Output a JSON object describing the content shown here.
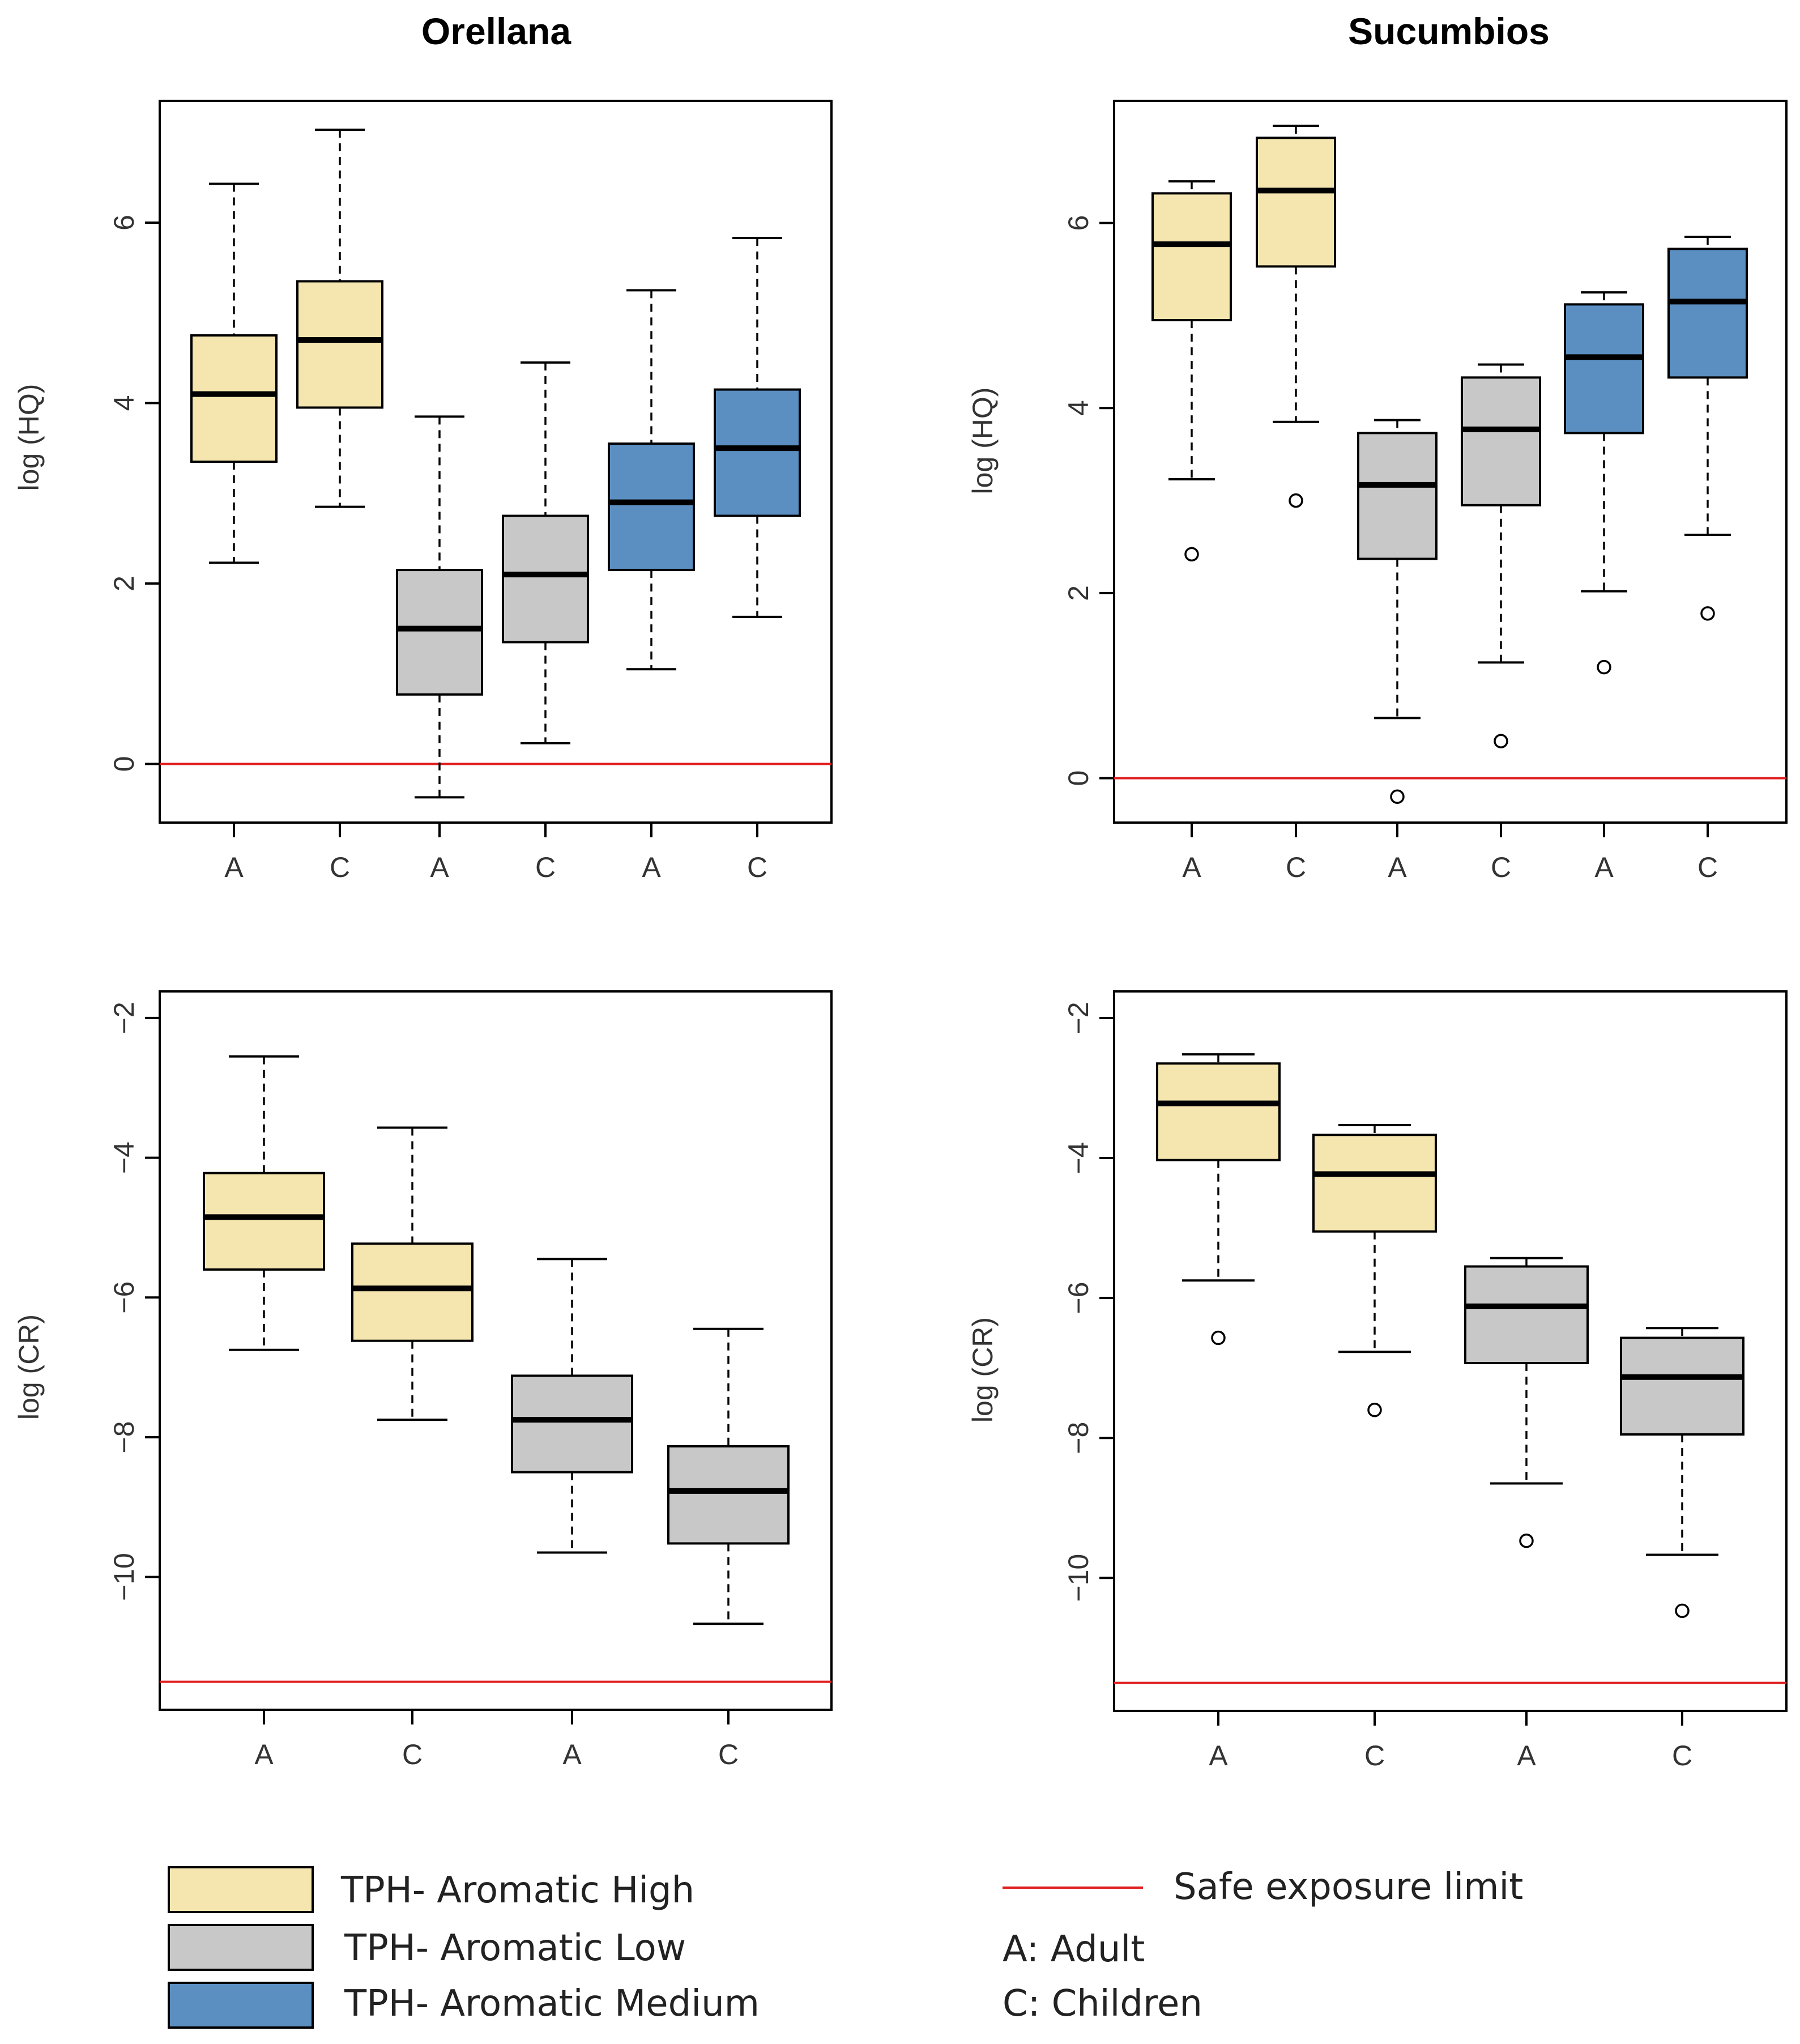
{
  "colors": {
    "high": "#F5E6B0",
    "low": "#C8C8C8",
    "medium": "#5B8FC2",
    "safe_limit": "#E02020",
    "box_outline": "#000000"
  },
  "legend": {
    "items": [
      {
        "label": "TPH- Aromatic High",
        "color_key": "high"
      },
      {
        "label": "TPH- Aromatic Low",
        "color_key": "low"
      },
      {
        "label": "TPH- Aromatic Medium",
        "color_key": "medium"
      }
    ],
    "safe_limit_label": "Safe exposure limit",
    "adult_label": "A: Adult",
    "children_label": "C: Children"
  },
  "chart_data": [
    {
      "type": "boxplot",
      "title": "Orellana",
      "ylabel": "log (HQ)",
      "ylim": [
        -0.65,
        7.35
      ],
      "yticks": [
        0,
        2,
        4,
        6
      ],
      "safe_limit": 0,
      "boxes": [
        {
          "label": "A",
          "group": "high",
          "lower_whisker": 2.23,
          "q1": 3.35,
          "median": 4.1,
          "q3": 4.75,
          "upper_whisker": 6.43,
          "outliers": []
        },
        {
          "label": "C",
          "group": "high",
          "lower_whisker": 2.85,
          "q1": 3.95,
          "median": 4.7,
          "q3": 5.35,
          "upper_whisker": 7.03,
          "outliers": []
        },
        {
          "label": "A",
          "group": "low",
          "lower_whisker": -0.37,
          "q1": 0.77,
          "median": 1.5,
          "q3": 2.15,
          "upper_whisker": 3.85,
          "outliers": []
        },
        {
          "label": "C",
          "group": "low",
          "lower_whisker": 0.23,
          "q1": 1.35,
          "median": 2.1,
          "q3": 2.75,
          "upper_whisker": 4.45,
          "outliers": []
        },
        {
          "label": "A",
          "group": "medium",
          "lower_whisker": 1.05,
          "q1": 2.15,
          "median": 2.9,
          "q3": 3.55,
          "upper_whisker": 5.25,
          "outliers": []
        },
        {
          "label": "C",
          "group": "medium",
          "lower_whisker": 1.63,
          "q1": 2.75,
          "median": 3.5,
          "q3": 4.15,
          "upper_whisker": 5.83,
          "outliers": []
        }
      ]
    },
    {
      "type": "boxplot",
      "title": "Sucumbios",
      "ylabel": "log (HQ)",
      "ylim": [
        -0.48,
        7.32
      ],
      "yticks": [
        0,
        2,
        4,
        6
      ],
      "safe_limit": 0,
      "boxes": [
        {
          "label": "A",
          "group": "high",
          "lower_whisker": 3.23,
          "q1": 4.95,
          "median": 5.77,
          "q3": 6.32,
          "upper_whisker": 6.45,
          "outliers": [
            2.42
          ]
        },
        {
          "label": "C",
          "group": "high",
          "lower_whisker": 3.85,
          "q1": 5.53,
          "median": 6.35,
          "q3": 6.92,
          "upper_whisker": 7.05,
          "outliers": [
            3.0
          ]
        },
        {
          "label": "A",
          "group": "low",
          "lower_whisker": 0.65,
          "q1": 2.37,
          "median": 3.17,
          "q3": 3.73,
          "upper_whisker": 3.87,
          "outliers": [
            -0.2
          ]
        },
        {
          "label": "C",
          "group": "low",
          "lower_whisker": 1.25,
          "q1": 2.95,
          "median": 3.77,
          "q3": 4.33,
          "upper_whisker": 4.47,
          "outliers": [
            0.4
          ]
        },
        {
          "label": "A",
          "group": "medium",
          "lower_whisker": 2.02,
          "q1": 3.73,
          "median": 4.55,
          "q3": 5.12,
          "upper_whisker": 5.25,
          "outliers": [
            1.2
          ]
        },
        {
          "label": "C",
          "group": "medium",
          "lower_whisker": 2.63,
          "q1": 4.33,
          "median": 5.15,
          "q3": 5.72,
          "upper_whisker": 5.85,
          "outliers": [
            1.78
          ]
        }
      ]
    },
    {
      "type": "boxplot",
      "title": "",
      "ylabel": "log (CR)",
      "ylim": [
        -11.9,
        -1.62
      ],
      "yticks": [
        -2,
        -4,
        -6,
        -8,
        -10
      ],
      "safe_limit": -11.5,
      "boxes": [
        {
          "label": "A",
          "group": "high",
          "lower_whisker": -6.75,
          "q1": -5.6,
          "median": -4.85,
          "q3": -4.22,
          "upper_whisker": -2.55,
          "outliers": []
        },
        {
          "label": "C",
          "group": "high",
          "lower_whisker": -7.75,
          "q1": -6.62,
          "median": -5.87,
          "q3": -5.23,
          "upper_whisker": -3.57,
          "outliers": []
        },
        {
          "label": "A",
          "group": "low",
          "lower_whisker": -9.65,
          "q1": -8.5,
          "median": -7.75,
          "q3": -7.12,
          "upper_whisker": -5.45,
          "outliers": []
        },
        {
          "label": "C",
          "group": "low",
          "lower_whisker": -10.67,
          "q1": -9.52,
          "median": -8.77,
          "q3": -8.13,
          "upper_whisker": -6.45,
          "outliers": []
        }
      ]
    },
    {
      "type": "boxplot",
      "title": "",
      "ylabel": "log (CR)",
      "ylim": [
        -11.9,
        -1.62
      ],
      "yticks": [
        -2,
        -4,
        -6,
        -8,
        -10
      ],
      "safe_limit": -11.5,
      "boxes": [
        {
          "label": "A",
          "group": "high",
          "lower_whisker": -5.75,
          "q1": -4.03,
          "median": -3.22,
          "q3": -2.65,
          "upper_whisker": -2.52,
          "outliers": [
            -6.57
          ]
        },
        {
          "label": "C",
          "group": "high",
          "lower_whisker": -6.77,
          "q1": -5.05,
          "median": -4.23,
          "q3": -3.67,
          "upper_whisker": -3.53,
          "outliers": [
            -7.6
          ]
        },
        {
          "label": "A",
          "group": "low",
          "lower_whisker": -8.65,
          "q1": -6.93,
          "median": -6.12,
          "q3": -5.55,
          "upper_whisker": -5.43,
          "outliers": [
            -9.47
          ]
        },
        {
          "label": "C",
          "group": "low",
          "lower_whisker": -9.67,
          "q1": -7.95,
          "median": -7.13,
          "q3": -6.57,
          "upper_whisker": -6.43,
          "outliers": [
            -10.47
          ]
        }
      ]
    }
  ]
}
